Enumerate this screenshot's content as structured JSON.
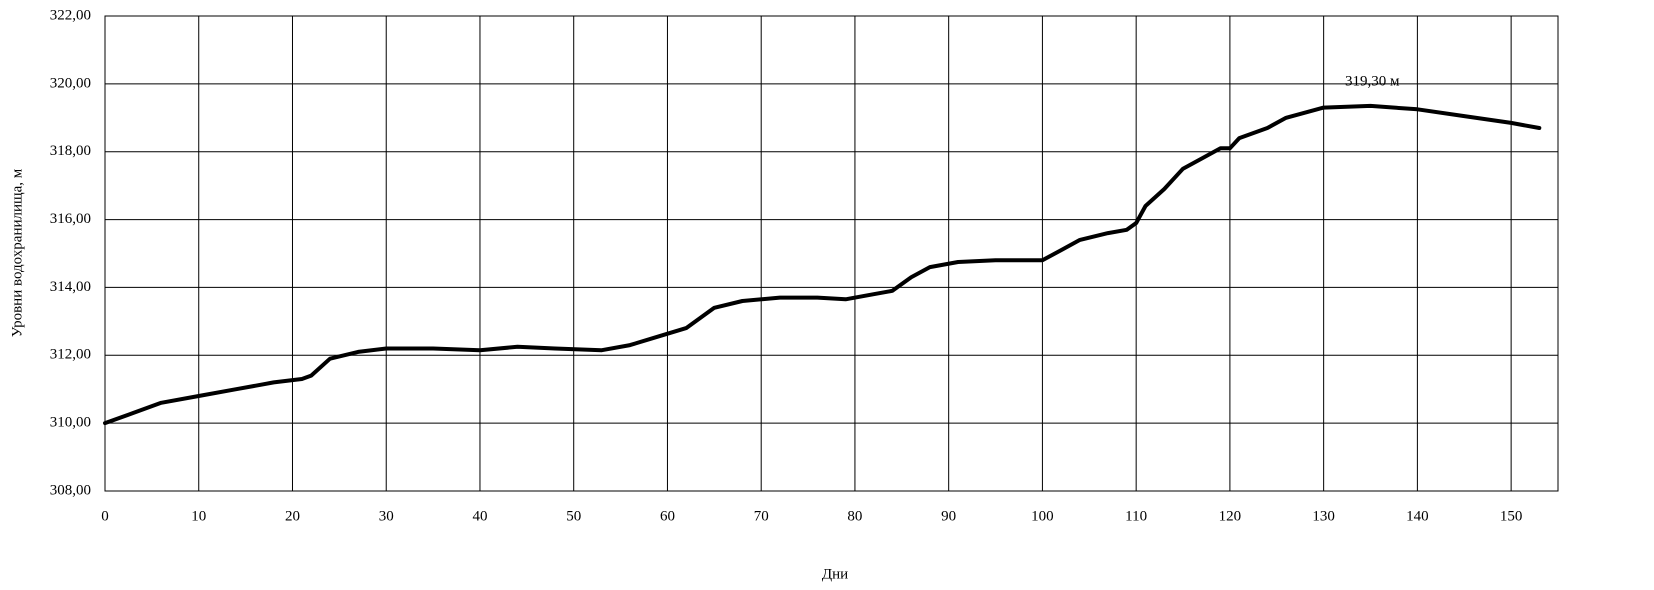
{
  "chart_data": {
    "type": "line",
    "x_label": "Дни",
    "y_label": "Уровни водохранилища, м",
    "annotation": "319,30  м",
    "xlim": [
      0,
      155
    ],
    "ylim": [
      308,
      322
    ],
    "xticks": [
      0,
      10,
      20,
      30,
      40,
      50,
      60,
      70,
      80,
      90,
      100,
      110,
      120,
      130,
      140,
      150
    ],
    "yticks": [
      {
        "value": 308,
        "label": "308,00"
      },
      {
        "value": 310,
        "label": "310,00"
      },
      {
        "value": 312,
        "label": "312,00"
      },
      {
        "value": 314,
        "label": "314,00"
      },
      {
        "value": 316,
        "label": "316,00"
      },
      {
        "value": 318,
        "label": "318,00"
      },
      {
        "value": 320,
        "label": "320,00"
      },
      {
        "value": 322,
        "label": "322,00"
      }
    ],
    "grid": true,
    "x": [
      0,
      3,
      6,
      10,
      14,
      18,
      21,
      22,
      24,
      27,
      30,
      35,
      40,
      44,
      48,
      53,
      56,
      59,
      62,
      65,
      68,
      72,
      76,
      79,
      82,
      84,
      86,
      88,
      91,
      95,
      98,
      100,
      102,
      104,
      107,
      109,
      110,
      111,
      113,
      115,
      117,
      119,
      120,
      121,
      124,
      126,
      130,
      135,
      140,
      145,
      150,
      153
    ],
    "series": [
      {
        "name": null,
        "color": "#000000",
        "values": [
          310.0,
          310.3,
          310.6,
          310.8,
          311.0,
          311.2,
          311.3,
          311.4,
          311.9,
          312.1,
          312.2,
          312.2,
          312.15,
          312.25,
          312.2,
          312.15,
          312.3,
          312.55,
          312.8,
          313.4,
          313.6,
          313.7,
          313.7,
          313.65,
          313.8,
          313.9,
          314.3,
          314.6,
          314.75,
          314.8,
          314.8,
          314.8,
          315.1,
          315.4,
          315.6,
          315.7,
          315.9,
          316.4,
          316.9,
          317.5,
          317.8,
          318.1,
          318.1,
          318.4,
          318.7,
          319.0,
          319.3,
          319.35,
          319.25,
          319.05,
          318.85,
          318.7
        ]
      }
    ]
  }
}
